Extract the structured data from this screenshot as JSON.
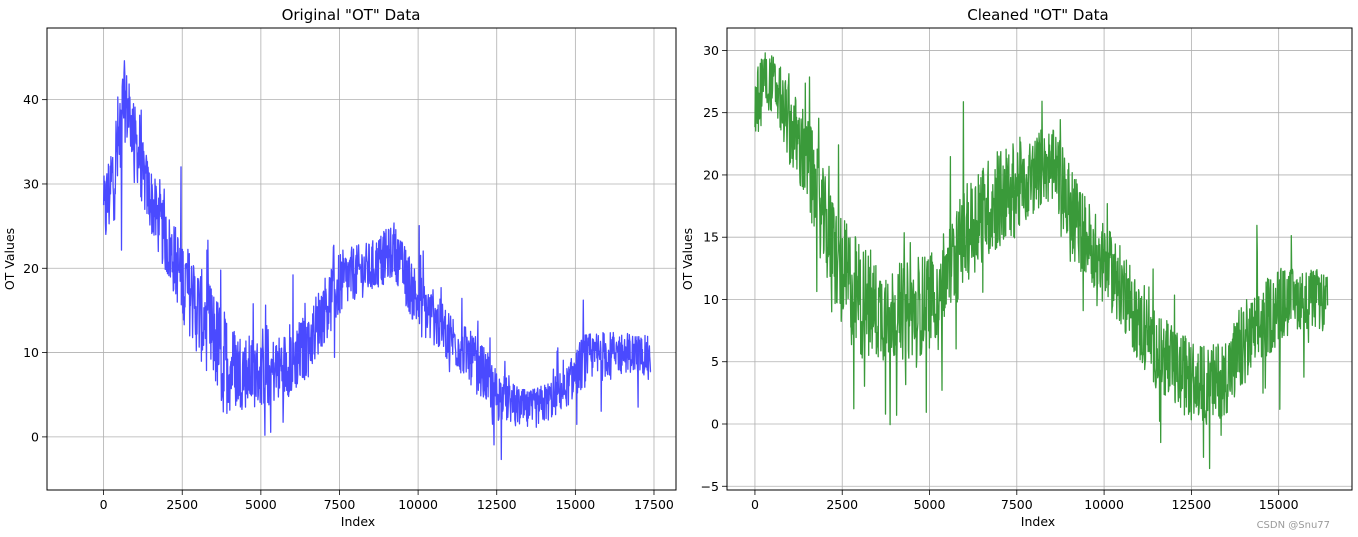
{
  "chart_data": [
    {
      "type": "line",
      "title": "Original \"OT\" Data",
      "xlabel": "Index",
      "ylabel": "OT Values",
      "xlim": [
        -1800,
        18200
      ],
      "ylim": [
        -6.3,
        48.5
      ],
      "xticks": [
        0,
        2500,
        5000,
        7500,
        10000,
        12500,
        15000,
        17500
      ],
      "yticks": [
        0,
        10,
        20,
        30,
        40
      ],
      "grid": true,
      "color": "#4a4aff",
      "series": [
        {
          "x": [
            0,
            250,
            500,
            650,
            900,
            1250,
            1600,
            2000,
            2500,
            3000,
            3500,
            3800,
            4250,
            5000,
            5500,
            6000,
            6500,
            7000,
            7500,
            8000,
            8500,
            9000,
            9250,
            9500,
            10000,
            10500,
            11000,
            11500,
            12000,
            12500,
            13000,
            13500,
            13800,
            14250,
            14750,
            15250,
            15750,
            16250,
            16750,
            17400
          ],
          "y": [
            26,
            30,
            35,
            40,
            37,
            31,
            27,
            23,
            19,
            15,
            12,
            9,
            8,
            7.5,
            8,
            9,
            11,
            15,
            18,
            19.5,
            20,
            21.5,
            22,
            20,
            16,
            14,
            12,
            10,
            8,
            5,
            4,
            3,
            3.5,
            4.5,
            6,
            9,
            9.5,
            10,
            10,
            9.5
          ],
          "band": [
            6,
            7,
            9,
            6,
            5,
            5,
            5,
            5,
            6,
            7,
            7,
            8,
            6,
            5,
            5,
            5,
            5,
            5,
            5,
            4,
            4,
            4,
            4,
            4,
            5,
            4,
            4,
            4,
            4,
            4,
            3,
            3,
            3,
            3,
            3,
            4,
            4,
            3,
            3,
            3
          ]
        }
      ]
    },
    {
      "type": "line",
      "title": "Cleaned \"OT\" Data",
      "xlabel": "Index",
      "ylabel": "OT Values",
      "xlim": [
        -800,
        17100
      ],
      "ylim": [
        -5.3,
        31.8
      ],
      "xticks": [
        0,
        2500,
        5000,
        7500,
        10000,
        12500,
        15000
      ],
      "yticks": [
        -5,
        0,
        5,
        10,
        15,
        20,
        25,
        30
      ],
      "grid": true,
      "color": "#3a9a3a",
      "series": [
        {
          "x": [
            0,
            250,
            600,
            1000,
            1500,
            2000,
            2500,
            3000,
            3500,
            4000,
            4500,
            5000,
            5500,
            6000,
            6500,
            7000,
            7500,
            8000,
            8300,
            8700,
            9000,
            9500,
            10000,
            10500,
            11000,
            11500,
            12000,
            12500,
            13000,
            13500,
            14000,
            14500,
            15000,
            15500,
            16000,
            16400
          ],
          "y": [
            25,
            28,
            27,
            24,
            21,
            16,
            12,
            10,
            9,
            9,
            9,
            10,
            12,
            15,
            17,
            18,
            19,
            20,
            21,
            20,
            17,
            15,
            13,
            11,
            8,
            6,
            4.5,
            3.5,
            3,
            4,
            6,
            8,
            9.5,
            10,
            10,
            9.5
          ],
          "band": [
            4,
            3,
            3,
            4,
            5,
            5,
            6,
            6,
            5,
            5,
            5,
            5,
            5,
            5,
            5,
            5,
            5,
            4,
            4,
            4,
            5,
            4,
            4,
            4,
            4,
            4,
            4,
            4,
            4,
            4,
            4,
            4,
            4,
            3,
            3,
            3
          ]
        }
      ]
    }
  ],
  "watermark": "CSDN @Snu77"
}
